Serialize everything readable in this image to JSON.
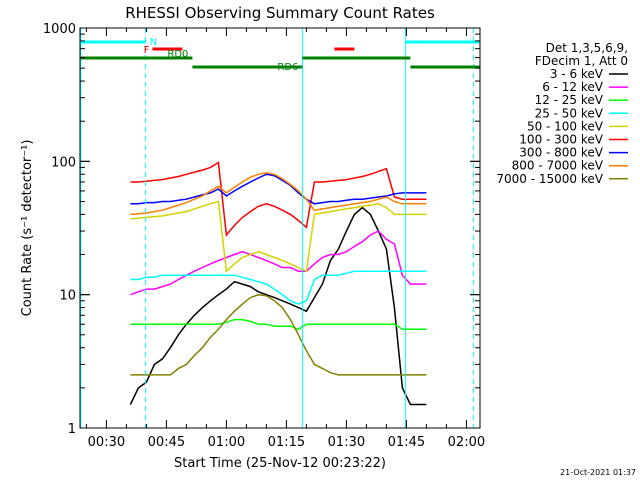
{
  "chart_data": {
    "type": "line",
    "title": "RHESSI Observing Summary Count Rates",
    "xlabel": "Start Time (25-Nov-12 00:23:22)",
    "ylabel": "Count Rate (s⁻¹ detector⁻¹)",
    "x_unit": "minutes after 00:00 UT",
    "xlim": [
      23.4,
      123.4
    ],
    "ylim": [
      1,
      1000
    ],
    "yscale": "log",
    "x_ticks": [
      {
        "value": 30,
        "label": "00:30"
      },
      {
        "value": 45,
        "label": "00:45"
      },
      {
        "value": 60,
        "label": "01:00"
      },
      {
        "value": 75,
        "label": "01:15"
      },
      {
        "value": 90,
        "label": "01:30"
      },
      {
        "value": 105,
        "label": "01:45"
      },
      {
        "value": 120,
        "label": "02:00"
      }
    ],
    "y_ticks": [
      {
        "value": 1,
        "label": "1"
      },
      {
        "value": 10,
        "label": "10"
      },
      {
        "value": 100,
        "label": "100"
      },
      {
        "value": 1000,
        "label": "1000"
      }
    ],
    "legend": {
      "placement": "right",
      "header": [
        "Det 1,3,5,6,9,",
        "FDecim 1, Att 0"
      ],
      "entries": [
        {
          "label": "3 - 6 keV",
          "color": "#000000"
        },
        {
          "label": "6 - 12 keV",
          "color": "#ff00ff"
        },
        {
          "label": "12 - 25 keV",
          "color": "#00ff00"
        },
        {
          "label": "25 - 50 keV",
          "color": "#00ffff"
        },
        {
          "label": "50 - 100 keV",
          "color": "#d2d200"
        },
        {
          "label": "100 - 300 keV",
          "color": "#ff0000"
        },
        {
          "label": "300 - 800 keV",
          "color": "#0000ff"
        },
        {
          "label": "800 - 7000 keV",
          "color": "#ff8000"
        },
        {
          "label": "7000 - 15000 keV",
          "color": "#808000"
        }
      ]
    },
    "series": [
      {
        "name": "3 - 6 keV",
        "color": "#000000",
        "x": [
          36.0,
          38,
          40,
          42,
          44,
          46,
          48,
          50,
          52,
          54,
          56,
          58,
          60,
          62,
          64,
          66,
          68,
          70,
          72,
          74,
          76,
          78,
          80,
          82,
          84,
          86,
          88,
          90,
          92,
          94,
          96,
          98,
          100,
          102,
          104,
          106,
          108,
          110
        ],
        "y": [
          1.5,
          2.0,
          2.2,
          3.0,
          3.3,
          4.0,
          5.0,
          6.0,
          7.0,
          8.0,
          9.0,
          10.0,
          11.0,
          12.5,
          12.0,
          11.5,
          10.5,
          10.0,
          9.5,
          9.0,
          8.5,
          8.0,
          7.5,
          9.5,
          12.0,
          18.0,
          22.0,
          30.0,
          40.0,
          45.0,
          40.0,
          30.0,
          22.0,
          8.0,
          2.0,
          1.5,
          1.5,
          1.5
        ]
      },
      {
        "name": "6 - 12 keV",
        "color": "#ff00ff",
        "x": [
          36.0,
          38,
          40,
          42,
          44,
          46,
          48,
          50,
          52,
          54,
          56,
          58,
          60,
          62,
          64,
          66,
          68,
          70,
          72,
          74,
          76,
          78,
          80,
          82,
          84,
          86,
          88,
          90,
          92,
          94,
          96,
          98,
          100,
          102,
          104,
          106,
          108,
          110
        ],
        "y": [
          10,
          10.5,
          11,
          11,
          11.5,
          12,
          13,
          14,
          15,
          16,
          17,
          18,
          19,
          20,
          21,
          20,
          19,
          18,
          17,
          16,
          16,
          15,
          15,
          17,
          19,
          20,
          20,
          21,
          23,
          25,
          28,
          30,
          26,
          24,
          14,
          12,
          12,
          12
        ]
      },
      {
        "name": "12 - 25 keV",
        "color": "#00ff00",
        "x": [
          36.0,
          38,
          40,
          42,
          44,
          46,
          48,
          50,
          52,
          54,
          56,
          58,
          60,
          62,
          64,
          66,
          68,
          70,
          72,
          74,
          76,
          78,
          80,
          82,
          84,
          86,
          88,
          90,
          92,
          94,
          96,
          98,
          100,
          102,
          104,
          106,
          108,
          110
        ],
        "y": [
          6,
          6,
          6,
          6,
          6,
          6,
          6,
          6,
          6,
          6,
          6,
          6,
          6.2,
          6.5,
          6.5,
          6.3,
          6,
          6,
          5.8,
          5.8,
          5.8,
          5.5,
          6,
          6,
          6,
          6,
          6,
          6,
          6,
          6,
          6,
          6,
          6,
          6,
          5.5,
          5.5,
          5.5,
          5.5
        ]
      },
      {
        "name": "25 - 50 keV",
        "color": "#00ffff",
        "x": [
          36.0,
          38,
          40,
          42,
          44,
          46,
          48,
          50,
          52,
          54,
          56,
          58,
          60,
          62,
          64,
          66,
          68,
          70,
          72,
          74,
          76,
          78,
          80,
          82,
          84,
          86,
          88,
          90,
          92,
          94,
          96,
          98,
          100,
          102,
          104,
          106,
          108,
          110
        ],
        "y": [
          13,
          13,
          13.5,
          13.5,
          14,
          14,
          14,
          14,
          14,
          14,
          14,
          14,
          14,
          14,
          13.5,
          13,
          12.5,
          12,
          11,
          10,
          9,
          8.5,
          9,
          13,
          14,
          14,
          14,
          14.5,
          15,
          15,
          15,
          15,
          15,
          15,
          15,
          15,
          15,
          15
        ]
      },
      {
        "name": "50 - 100 keV",
        "color": "#d2d200",
        "x": [
          36.0,
          38,
          40,
          42,
          44,
          46,
          48,
          50,
          52,
          54,
          56,
          58,
          60,
          62,
          64,
          66,
          68,
          70,
          72,
          74,
          76,
          78,
          80,
          82,
          84,
          86,
          88,
          90,
          92,
          94,
          96,
          98,
          100,
          102,
          104,
          106,
          108,
          110
        ],
        "y": [
          37,
          37.5,
          38,
          38.5,
          39,
          40,
          41,
          42,
          44,
          46,
          48,
          50,
          15,
          17,
          19,
          20,
          21,
          20,
          19,
          18,
          17,
          16,
          15,
          40,
          41,
          42,
          43,
          44,
          45,
          46,
          47,
          48,
          45,
          40,
          40,
          40,
          40,
          40
        ]
      },
      {
        "name": "100 - 300 keV",
        "color": "#ff0000",
        "x": [
          36.0,
          38,
          40,
          42,
          44,
          46,
          48,
          50,
          52,
          54,
          56,
          58,
          60,
          62,
          64,
          66,
          68,
          70,
          72,
          74,
          76,
          78,
          80,
          82,
          84,
          86,
          88,
          90,
          92,
          94,
          96,
          98,
          100,
          102,
          104,
          106,
          108,
          110
        ],
        "y": [
          70,
          70,
          71,
          72,
          73,
          75,
          77,
          80,
          83,
          86,
          90,
          98,
          28,
          33,
          38,
          42,
          46,
          48,
          46,
          43,
          40,
          36,
          32,
          70,
          70,
          71,
          72,
          73,
          75,
          77,
          80,
          84,
          88,
          54,
          52,
          52,
          52,
          52
        ]
      },
      {
        "name": "300 - 800 keV",
        "color": "#0000ff",
        "x": [
          36.0,
          38,
          40,
          42,
          44,
          46,
          48,
          50,
          52,
          54,
          56,
          58,
          60,
          62,
          64,
          66,
          68,
          70,
          72,
          74,
          76,
          78,
          80,
          82,
          84,
          86,
          88,
          90,
          92,
          94,
          96,
          98,
          100,
          102,
          104,
          106,
          108,
          110
        ],
        "y": [
          48,
          48,
          49,
          49,
          50,
          50,
          51,
          52,
          54,
          56,
          58,
          62,
          55,
          60,
          65,
          70,
          75,
          80,
          78,
          72,
          66,
          58,
          52,
          48,
          49,
          50,
          50,
          51,
          52,
          52,
          53,
          54,
          55,
          57,
          58,
          58,
          58,
          58
        ]
      },
      {
        "name": "800 - 7000 keV",
        "color": "#ff8000",
        "x": [
          36.0,
          38,
          40,
          42,
          44,
          46,
          48,
          50,
          52,
          54,
          56,
          58,
          60,
          62,
          64,
          66,
          68,
          70,
          72,
          74,
          76,
          78,
          80,
          82,
          84,
          86,
          88,
          90,
          92,
          94,
          96,
          98,
          100,
          102,
          104,
          106,
          108,
          110
        ],
        "y": [
          40,
          40.5,
          41,
          42,
          43,
          45,
          47,
          49,
          52,
          55,
          60,
          65,
          58,
          64,
          70,
          76,
          80,
          82,
          80,
          74,
          67,
          60,
          52,
          43,
          44,
          45,
          46,
          47,
          48,
          49,
          50,
          52,
          54,
          50,
          48,
          48,
          48,
          48
        ]
      },
      {
        "name": "7000 - 15000 keV",
        "color": "#808000",
        "x": [
          36.0,
          38,
          40,
          42,
          44,
          46,
          48,
          50,
          52,
          54,
          56,
          58,
          60,
          62,
          64,
          66,
          68,
          70,
          72,
          74,
          76,
          78,
          80,
          82,
          84,
          86,
          88,
          90,
          92,
          94,
          96,
          98,
          100,
          102,
          104,
          106,
          108,
          110
        ],
        "y": [
          2.5,
          2.5,
          2.5,
          2.5,
          2.5,
          2.5,
          2.8,
          3.0,
          3.5,
          4.0,
          4.8,
          5.5,
          6.5,
          7.5,
          8.5,
          9.5,
          10.0,
          9.8,
          9.0,
          8.0,
          6.5,
          5.0,
          3.8,
          3.0,
          2.8,
          2.6,
          2.5,
          2.5,
          2.5,
          2.5,
          2.5,
          2.5,
          2.5,
          2.5,
          2.5,
          2.5,
          2.5,
          2.5
        ]
      }
    ],
    "annotations": {
      "top_bars": [
        {
          "label": "N",
          "color": "#00ffff",
          "x_start": 23.4,
          "x_end": 39.8,
          "row": 1
        },
        {
          "label": "",
          "color": "#00ffff",
          "x_start": 104.8,
          "x_end": 123.4,
          "row": 1
        },
        {
          "label": "F",
          "color": "#ff0000",
          "x_start": 41.5,
          "x_end": 49.0,
          "row": 2
        },
        {
          "label": "",
          "color": "#ff0000",
          "x_start": 87.0,
          "x_end": 92.0,
          "row": 2
        },
        {
          "label": "RD0",
          "color": "#008000",
          "x_start": 23.4,
          "x_end": 51.5,
          "row": 3
        },
        {
          "label": "",
          "color": "#008000",
          "x_start": 79.0,
          "x_end": 106.0,
          "row": 3
        },
        {
          "label": "RD6",
          "color": "#008000",
          "x_start": 51.5,
          "x_end": 79.0,
          "row": 4
        },
        {
          "label": "",
          "color": "#008000",
          "x_start": 106.0,
          "x_end": 123.4,
          "row": 4
        }
      ],
      "vertical_lines": [
        {
          "x": 23.6,
          "color": "#00ffff",
          "style": "solid"
        },
        {
          "x": 39.8,
          "color": "#00ffff",
          "style": "dashed"
        },
        {
          "x": 79.0,
          "color": "#00ffff",
          "style": "solid"
        },
        {
          "x": 104.8,
          "color": "#00ffff",
          "style": "solid"
        },
        {
          "x": 121.8,
          "color": "#00ffff",
          "style": "dashed"
        }
      ]
    },
    "timestamp": "21-Oct-2021 01:37"
  }
}
